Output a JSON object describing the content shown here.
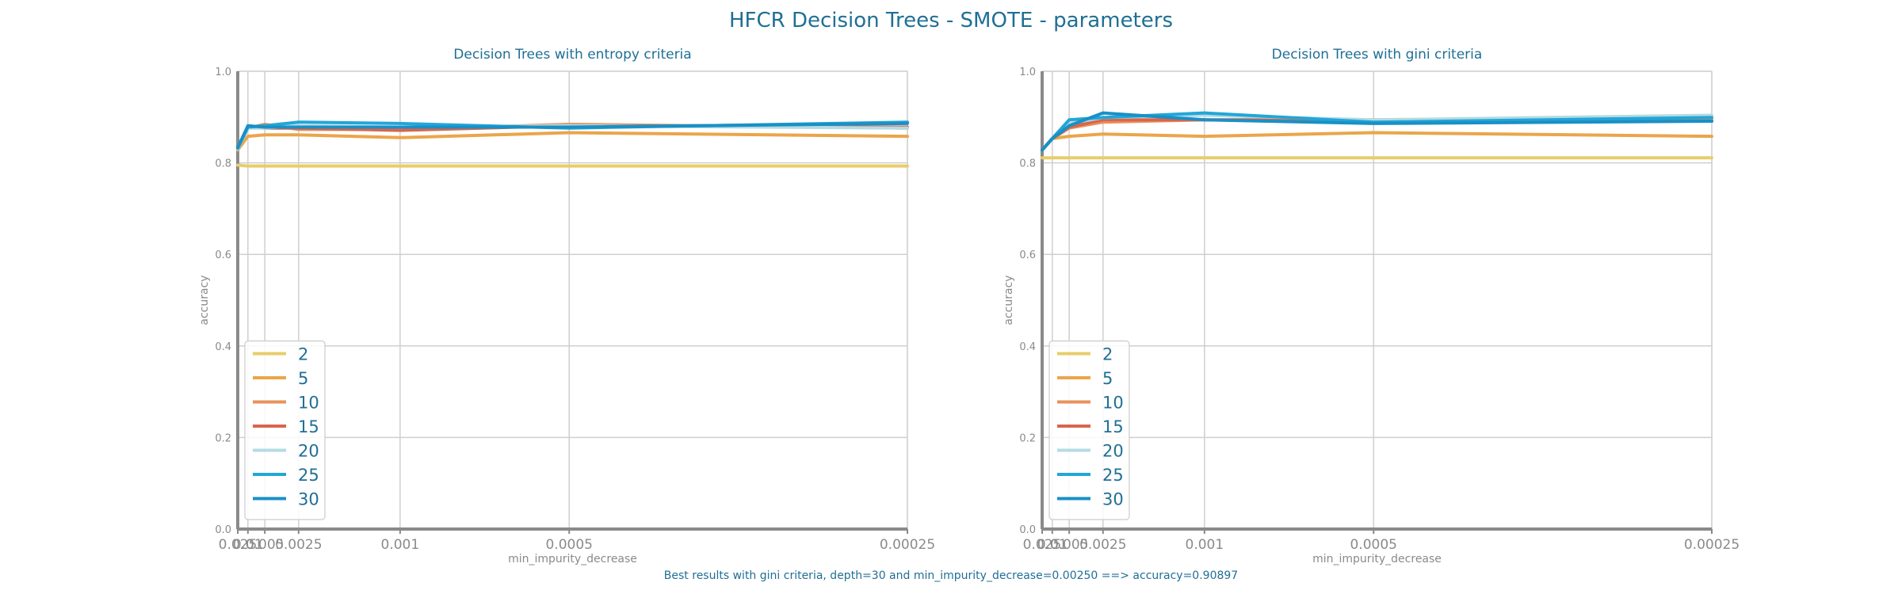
{
  "figure": {
    "title": "HFCR Decision Trees - SMOTE - parameters",
    "caption": "Best results with gini criteria, depth=30 and min_impurity_decrease=0.00250 ==> accuracy=0.90897"
  },
  "chart_data": [
    {
      "type": "line",
      "title": "Decision Trees with entropy criteria",
      "xlabel": "min_impurity_decrease",
      "ylabel": "accuracy",
      "ylim": [
        0,
        1
      ],
      "yticks": [
        0.0,
        0.2,
        0.4,
        0.6,
        0.8,
        1.0
      ],
      "x_scale": "reciprocal",
      "x": [
        0.025,
        0.01,
        0.005,
        0.0025,
        0.001,
        0.0005,
        0.00025
      ],
      "x_tick_labels": [
        "0.025",
        "0.01",
        "0.005",
        "0.0025",
        "0.001",
        "0.0005",
        "0.00025"
      ],
      "grid": true,
      "legend": "lower-left",
      "series": [
        {
          "name": "2",
          "color": "#e8cd6a",
          "values": [
            0.795,
            0.793,
            0.793,
            0.793,
            0.793,
            0.793,
            0.793
          ]
        },
        {
          "name": "5",
          "color": "#eba54a",
          "values": [
            0.828,
            0.858,
            0.861,
            0.861,
            0.855,
            0.866,
            0.858
          ]
        },
        {
          "name": "10",
          "color": "#e8925a",
          "values": [
            0.83,
            0.876,
            0.884,
            0.873,
            0.873,
            0.884,
            0.876
          ]
        },
        {
          "name": "15",
          "color": "#d9654c",
          "values": [
            0.83,
            0.878,
            0.876,
            0.876,
            0.871,
            0.881,
            0.878
          ]
        },
        {
          "name": "20",
          "color": "#b5dbe3",
          "values": [
            0.83,
            0.876,
            0.876,
            0.881,
            0.878,
            0.881,
            0.876
          ]
        },
        {
          "name": "25",
          "color": "#23a6d8",
          "values": [
            0.832,
            0.878,
            0.881,
            0.889,
            0.886,
            0.876,
            0.889
          ]
        },
        {
          "name": "30",
          "color": "#1990c6",
          "values": [
            0.833,
            0.881,
            0.878,
            0.878,
            0.878,
            0.878,
            0.886
          ]
        }
      ]
    },
    {
      "type": "line",
      "title": "Decision Trees with gini criteria",
      "xlabel": "min_impurity_decrease",
      "ylabel": "accuracy",
      "ylim": [
        0,
        1
      ],
      "yticks": [
        0.0,
        0.2,
        0.4,
        0.6,
        0.8,
        1.0
      ],
      "x_scale": "reciprocal",
      "x": [
        0.025,
        0.01,
        0.005,
        0.0025,
        0.001,
        0.0005,
        0.00025
      ],
      "x_tick_labels": [
        "0.025",
        "0.01",
        "0.005",
        "0.0025",
        "0.001",
        "0.0005",
        "0.00025"
      ],
      "grid": true,
      "legend": "lower-left",
      "series": [
        {
          "name": "2",
          "color": "#e8cd6a",
          "values": [
            0.811,
            0.811,
            0.811,
            0.811,
            0.811,
            0.811,
            0.811
          ]
        },
        {
          "name": "5",
          "color": "#eba54a",
          "values": [
            0.828,
            0.853,
            0.858,
            0.863,
            0.858,
            0.866,
            0.858
          ]
        },
        {
          "name": "10",
          "color": "#e8925a",
          "values": [
            0.828,
            0.853,
            0.876,
            0.889,
            0.894,
            0.891,
            0.894
          ]
        },
        {
          "name": "15",
          "color": "#d9654c",
          "values": [
            0.828,
            0.853,
            0.878,
            0.894,
            0.894,
            0.894,
            0.891
          ]
        },
        {
          "name": "20",
          "color": "#b5dbe3",
          "values": [
            0.828,
            0.853,
            0.886,
            0.899,
            0.904,
            0.894,
            0.904
          ]
        },
        {
          "name": "25",
          "color": "#23a6d8",
          "values": [
            0.828,
            0.853,
            0.894,
            0.899,
            0.909,
            0.889,
            0.899
          ]
        },
        {
          "name": "30",
          "color": "#1990c6",
          "values": [
            0.828,
            0.853,
            0.881,
            0.909,
            0.894,
            0.886,
            0.891
          ]
        }
      ]
    }
  ]
}
